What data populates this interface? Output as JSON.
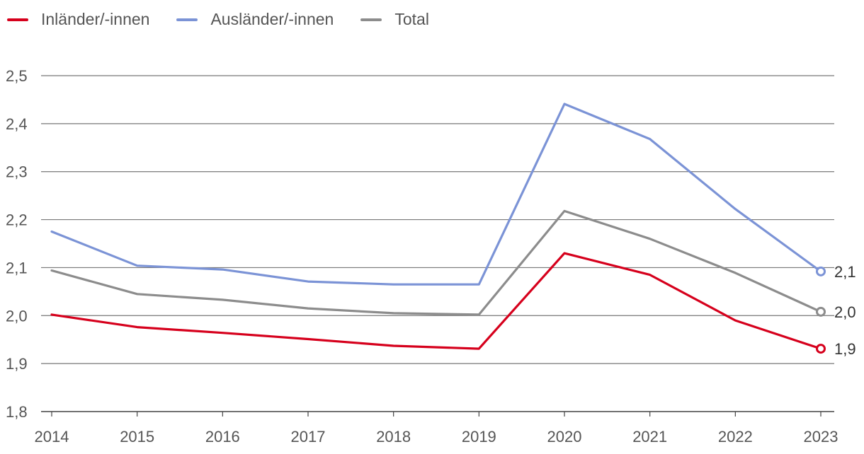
{
  "chart_data": {
    "type": "line",
    "x": [
      "2014",
      "2015",
      "2016",
      "2017",
      "2018",
      "2019",
      "2020",
      "2021",
      "2022",
      "2023"
    ],
    "y_ticks": [
      "1,8",
      "1,9",
      "2,0",
      "2,1",
      "2,2",
      "2,3",
      "2,4",
      "2,5"
    ],
    "ylim": [
      1.8,
      2.5
    ],
    "grid": true,
    "legend_position": "top-left",
    "series": [
      {
        "name": "Inländer/-innen",
        "color": "#d6001c",
        "values": [
          2.002,
          1.976,
          1.964,
          1.951,
          1.937,
          1.931,
          2.13,
          2.085,
          1.99,
          1.931
        ],
        "end_label": "1,9"
      },
      {
        "name": "Ausländer/-innen",
        "color": "#7b93d6",
        "values": [
          2.175,
          2.104,
          2.096,
          2.071,
          2.065,
          2.065,
          2.441,
          2.368,
          2.222,
          2.092
        ],
        "end_label": "2,1"
      },
      {
        "name": "Total",
        "color": "#8c8c8c",
        "values": [
          2.094,
          2.045,
          2.033,
          2.015,
          2.005,
          2.002,
          2.218,
          2.16,
          2.089,
          2.008
        ],
        "end_label": "2,0"
      }
    ]
  }
}
